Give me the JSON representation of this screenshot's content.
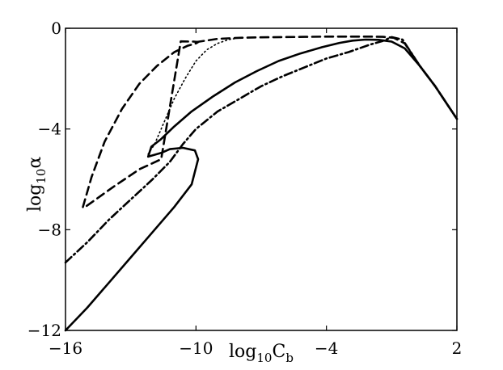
{
  "chart_data": {
    "type": "line",
    "title": "",
    "xlabel": {
      "base": "log",
      "sub": "10",
      "main": "C",
      "main_sub": "b"
    },
    "ylabel": {
      "base": "log",
      "sub": "10",
      "main": "α"
    },
    "xlim": [
      -16,
      2
    ],
    "ylim": [
      -12,
      0
    ],
    "xticks": [
      -16,
      -10,
      -4,
      2
    ],
    "xtick_labels": [
      "−16",
      "−10",
      "−4",
      "2"
    ],
    "yticks": [
      0,
      -4,
      -8,
      -12
    ],
    "ytick_labels": [
      "0",
      "−4",
      "−8",
      "−12"
    ],
    "grid": false,
    "legend": "none",
    "series": [
      {
        "style": "solid",
        "x": [
          -16,
          -15,
          -14,
          -13,
          -12.2,
          -11,
          -10.2,
          -9.9,
          -10.05,
          -10.6,
          -11.2,
          -11.6,
          -12.2,
          -12.05,
          -11.6,
          -11,
          -10.2,
          -9.2,
          -8.2,
          -7.2,
          -6.2,
          -5.2,
          -4.2,
          -3.4,
          -2.8,
          -2.2,
          -1.6,
          -1,
          -0.4,
          0.3,
          1,
          2
        ],
        "y": [
          -12,
          -11.1,
          -10.1,
          -9.1,
          -8.3,
          -7.1,
          -6.2,
          -5.2,
          -4.85,
          -4.75,
          -4.8,
          -4.95,
          -5.1,
          -4.7,
          -4.4,
          -3.9,
          -3.3,
          -2.7,
          -2.15,
          -1.7,
          -1.3,
          -1,
          -0.75,
          -0.58,
          -0.49,
          -0.45,
          -0.46,
          -0.53,
          -0.8,
          -1.5,
          -2.3,
          -3.6
        ]
      },
      {
        "style": "dashed",
        "x": [
          -15.2,
          -14.8,
          -14.2,
          -13.4,
          -12.6,
          -11.8,
          -11,
          -10.4,
          -10,
          -9.9,
          -10.1,
          -10.7,
          -11.6,
          -12.6,
          -13.8,
          -15.1
        ],
        "y": [
          -7.1,
          -5.9,
          -4.5,
          -3.2,
          -2.2,
          -1.5,
          -0.95,
          -0.7,
          -0.6,
          -0.55,
          -0.53,
          -0.52,
          -5.2,
          -5.6,
          -6.3,
          -7.1
        ]
      },
      {
        "style": "dashed",
        "x": [
          -10,
          -9,
          -8,
          -7,
          -6,
          -5,
          -4,
          -3,
          -2,
          -1.4,
          -0.9,
          -0.4,
          0.3,
          1,
          2
        ],
        "y": [
          -0.55,
          -0.42,
          -0.38,
          -0.36,
          -0.35,
          -0.34,
          -0.33,
          -0.33,
          -0.33,
          -0.34,
          -0.38,
          -0.6,
          -1.5,
          -2.3,
          -3.6
        ]
      },
      {
        "style": "dotted",
        "x": [
          -12.2,
          -11.9,
          -11.5,
          -11,
          -10.5,
          -10,
          -9.5,
          -9,
          -8.5,
          -8
        ],
        "y": [
          -5,
          -4.6,
          -3.8,
          -2.8,
          -2,
          -1.3,
          -0.85,
          -0.6,
          -0.45,
          -0.38
        ]
      },
      {
        "style": "dashdot",
        "x": [
          -16,
          -15,
          -14,
          -13,
          -12,
          -11.2,
          -10.6,
          -10,
          -9,
          -8,
          -7,
          -6,
          -5,
          -4,
          -3,
          -2,
          -1.4,
          -1,
          -0.5,
          0.3,
          1,
          2
        ],
        "y": [
          -9.3,
          -8.5,
          -7.6,
          -6.8,
          -6,
          -5.3,
          -4.6,
          -4,
          -3.3,
          -2.8,
          -2.3,
          -1.9,
          -1.55,
          -1.2,
          -0.95,
          -0.65,
          -0.5,
          -0.35,
          -0.45,
          -1.5,
          -2.3,
          -3.6
        ]
      }
    ]
  }
}
